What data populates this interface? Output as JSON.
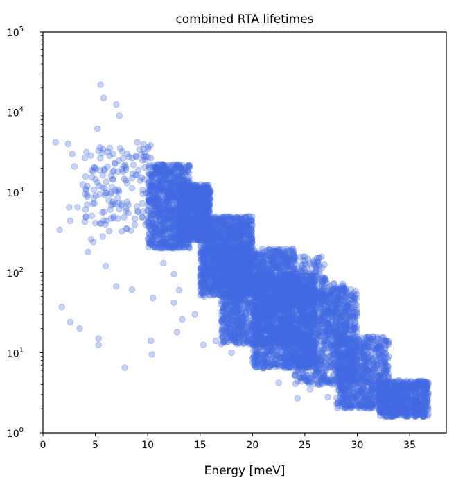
{
  "chart_data": {
    "type": "scatter",
    "title": "combined RTA lifetimes",
    "xlabel": "Energy [meV]",
    "ylabel": "",
    "xlim": [
      0,
      38.5
    ],
    "ylim": [
      1,
      100000
    ],
    "yscale": "log",
    "grid": false,
    "legend": "none",
    "marker_color": "#4169E1",
    "marker_alpha": 0.3,
    "x_ticks": [
      {
        "value": 0,
        "label": "0"
      },
      {
        "value": 5,
        "label": "5"
      },
      {
        "value": 10,
        "label": "10"
      },
      {
        "value": 15,
        "label": "15"
      },
      {
        "value": 20,
        "label": "20"
      },
      {
        "value": 25,
        "label": "25"
      },
      {
        "value": 30,
        "label": "30"
      },
      {
        "value": 35,
        "label": "35"
      }
    ],
    "y_ticks": [
      {
        "value": 1,
        "base": "10",
        "exp": "0"
      },
      {
        "value": 10,
        "base": "10",
        "exp": "1"
      },
      {
        "value": 100,
        "base": "10",
        "exp": "2"
      },
      {
        "value": 1000,
        "base": "10",
        "exp": "3"
      },
      {
        "value": 10000,
        "base": "10",
        "exp": "4"
      },
      {
        "value": 100000,
        "base": "10",
        "exp": "5"
      }
    ],
    "points": [
      [
        1.2,
        4200
      ],
      [
        1.6,
        340
      ],
      [
        1.8,
        37
      ],
      [
        2.4,
        4000
      ],
      [
        2.5,
        650
      ],
      [
        2.6,
        440
      ],
      [
        2.6,
        24
      ],
      [
        2.8,
        3000
      ],
      [
        3.0,
        2100
      ],
      [
        3.3,
        650
      ],
      [
        3.5,
        20
      ],
      [
        3.8,
        1250
      ],
      [
        4.0,
        430
      ],
      [
        4.2,
        700
      ],
      [
        4.3,
        180
      ],
      [
        4.6,
        260
      ],
      [
        4.8,
        240
      ],
      [
        5.2,
        6200
      ],
      [
        5.3,
        15
      ],
      [
        5.3,
        12.5
      ],
      [
        5.5,
        22000
      ],
      [
        5.7,
        280
      ],
      [
        5.8,
        15000
      ],
      [
        6.0,
        120
      ],
      [
        6.2,
        3200
      ],
      [
        6.5,
        470
      ],
      [
        7.0,
        67
      ],
      [
        7.3,
        9000
      ],
      [
        7.8,
        6.5
      ],
      [
        8.0,
        350
      ],
      [
        8.5,
        61
      ],
      [
        9.0,
        4200
      ],
      [
        10.3,
        14
      ],
      [
        10.4,
        9.5
      ],
      [
        10.5,
        48
      ],
      [
        10.5,
        240
      ],
      [
        12.5,
        42
      ],
      [
        12.8,
        18
      ],
      [
        13.3,
        26
      ],
      [
        15.3,
        12.5
      ],
      [
        7.0,
        12500
      ],
      [
        6.5,
        1000
      ],
      [
        8.5,
        1500
      ],
      [
        9.5,
        2500
      ],
      [
        11.0,
        1800
      ],
      [
        12.0,
        1400
      ],
      [
        13.0,
        1200
      ],
      [
        14.0,
        900
      ],
      [
        15.0,
        700
      ],
      [
        16.0,
        500
      ],
      [
        17.0,
        380
      ],
      [
        18.0,
        300
      ],
      [
        19.0,
        220
      ],
      [
        20.0,
        170
      ],
      [
        21.0,
        140
      ],
      [
        22.0,
        120
      ],
      [
        23.0,
        105
      ],
      [
        24.0,
        110
      ],
      [
        25.0,
        140
      ],
      [
        26.0,
        100
      ],
      [
        27.0,
        80
      ],
      [
        28.0,
        50
      ],
      [
        29.0,
        30
      ],
      [
        30.0,
        18
      ],
      [
        31.0,
        10
      ],
      [
        32.0,
        7
      ],
      [
        33.0,
        5
      ],
      [
        34.0,
        4.5
      ],
      [
        35.0,
        4.2
      ],
      [
        36.0,
        4.0
      ],
      [
        36.5,
        4.0
      ],
      [
        35.5,
        1.6
      ],
      [
        36.0,
        1.7
      ],
      [
        34.5,
        2.0
      ],
      [
        25.5,
        3.5
      ],
      [
        24.3,
        2.7
      ],
      [
        27.2,
        2.8
      ],
      [
        22.5,
        4.2
      ],
      [
        20.5,
        7.0
      ],
      [
        18.0,
        10
      ],
      [
        16.5,
        14
      ],
      [
        14.5,
        30
      ],
      [
        13.0,
        60
      ],
      [
        12.5,
        95
      ],
      [
        11.5,
        130
      ],
      [
        15.5,
        170
      ]
    ],
    "clusters": [
      {
        "x": [
          10,
          14
        ],
        "logy": [
          2.3,
          3.35
        ],
        "n": 900,
        "spread": "uniform"
      },
      {
        "x": [
          13,
          16
        ],
        "logy": [
          2.4,
          3.1
        ],
        "n": 900,
        "spread": "uniform"
      },
      {
        "x": [
          15,
          20
        ],
        "logy": [
          1.7,
          2.7
        ],
        "n": 1400,
        "spread": "uniform"
      },
      {
        "x": [
          17,
          24
        ],
        "logy": [
          1.1,
          2.3
        ],
        "n": 1600,
        "spread": "uniform"
      },
      {
        "x": [
          20,
          26
        ],
        "logy": [
          0.8,
          2.0
        ],
        "n": 1300,
        "spread": "uniform"
      },
      {
        "x": [
          24,
          30
        ],
        "logy": [
          0.6,
          1.8
        ],
        "n": 1000,
        "spread": "uniform"
      },
      {
        "x": [
          28,
          33
        ],
        "logy": [
          0.3,
          1.2
        ],
        "n": 800,
        "spread": "uniform"
      },
      {
        "x": [
          32,
          36.8
        ],
        "logy": [
          0.2,
          0.65
        ],
        "n": 700,
        "spread": "uniform"
      },
      {
        "x": [
          4,
          10.5
        ],
        "logy": [
          2.5,
          3.6
        ],
        "n": 160,
        "spread": "uniform"
      },
      {
        "x": [
          24,
          27
        ],
        "logy": [
          1.6,
          2.2
        ],
        "n": 150,
        "spread": "uniform"
      },
      {
        "x": [
          26.5,
          29
        ],
        "logy": [
          1.2,
          1.9
        ],
        "n": 120,
        "spread": "uniform"
      }
    ]
  }
}
